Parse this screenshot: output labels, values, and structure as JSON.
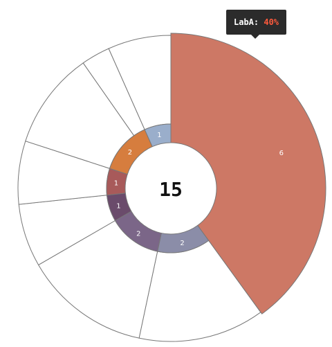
{
  "tooltip": {
    "label": "LabA:",
    "value": "40%"
  },
  "chart_data": {
    "type": "pie",
    "style": "nested donut",
    "total_label": "15",
    "total": 15,
    "slices": [
      {
        "value": 6,
        "label": "6",
        "color": "#cd7865"
      },
      {
        "value": 2,
        "label": "2",
        "color": "#8b8da8"
      },
      {
        "value": 2,
        "label": "2",
        "color": "#7b6688"
      },
      {
        "value": 1,
        "label": "1",
        "color": "#6a4b6b"
      },
      {
        "value": 1,
        "label": "1",
        "color": "#a85a5a"
      },
      {
        "value": 2,
        "label": "2",
        "color": "#d67d3e"
      },
      {
        "value": 1,
        "label": "1",
        "color": "#9aaecb"
      }
    ],
    "highlighted_slice": 0,
    "outer_ring_start_deg": 325,
    "outer_ring_fill": "#ffffff",
    "stroke_color": "#777777"
  }
}
